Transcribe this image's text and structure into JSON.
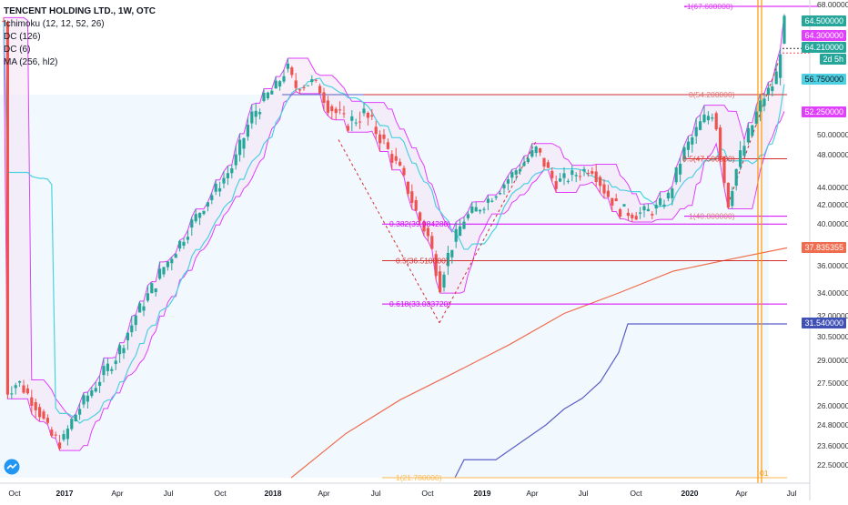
{
  "legend": {
    "title": "TENCENT HOLDING LTD., 1W, OTC",
    "ichimoku": "Ichimoku (12, 12, 52, 26)",
    "dc126": "DC (126)",
    "dc6": "DC (6)",
    "ma": "MA (256, hl2)"
  },
  "price_labels": {
    "last": "64.500000",
    "ichimoku_a": "64.300000",
    "ichimoku_b": "64.210000",
    "countdown": "2d 5h",
    "dc_mid": "56.750000",
    "dc_low": "52.250000",
    "ma": "37.835355",
    "dc126_low": "31.540000"
  },
  "colors": {
    "bull": "#26a69a",
    "bear": "#ef5350",
    "dc_band": "#e040fb",
    "dc_fill": "#f3e5f5",
    "dc126_line": "#5b5fc7",
    "dc126_fill": "#e3f2fd",
    "ma": "#ef6c4f",
    "fib_red": "#d32f2f",
    "fib_magenta": "#d500f9",
    "kijun": "#4dd0e1",
    "vline": "#ff9800"
  },
  "chart_data": {
    "type": "candlestick",
    "title": "TENCENT HOLDING LTD., 1W, OTC",
    "ylim": [
      21.7,
      68.0
    ],
    "x_ticks": [
      "Oct",
      "2017",
      "Apr",
      "Jul",
      "Oct",
      "2018",
      "Apr",
      "Jul",
      "Oct",
      "2019",
      "Apr",
      "Jul",
      "Oct",
      "2020",
      "Apr",
      "Jul"
    ],
    "y_ticks": [
      "68.000000",
      "50.000000",
      "48.000000",
      "44.000000",
      "42.000000",
      "40.000000",
      "36.000000",
      "34.000000",
      "32.000000",
      "30.500000",
      "29.000000",
      "27.500000",
      "26.000000",
      "24.800000",
      "23.600000",
      "22.500000"
    ],
    "fib_labels": [
      {
        "text": "-1(67.600000)",
        "value": 67.6
      },
      {
        "text": "0(54.200000)",
        "value": 54.2
      },
      {
        "text": "0.5(47.500000)",
        "value": 47.5
      },
      {
        "text": "1(40.800000)",
        "value": 40.8
      },
      {
        "text": "0.382(39.984280)",
        "value": 39.98428
      },
      {
        "text": "0.5(36.510000)",
        "value": 36.51
      },
      {
        "text": "0.618(33.033720)",
        "value": 33.03372
      },
      {
        "text": "1(21.780000)",
        "value": 21.78
      }
    ],
    "vline_label": "01",
    "last_price": 64.5
  }
}
